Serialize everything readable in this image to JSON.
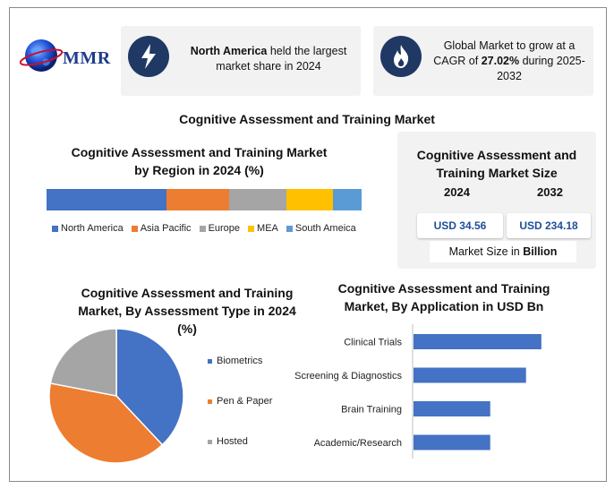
{
  "brand": {
    "logo_text": "MMR"
  },
  "cards": [
    {
      "icon": "lightning-icon",
      "pre": "",
      "bold": "North America",
      "post": " held the largest market share in 2024"
    },
    {
      "icon": "flame-icon",
      "pre": "Global Market to grow at a CAGR of ",
      "bold": "27.02%",
      "post": " during 2025-2032"
    }
  ],
  "main_title": "Cognitive Assessment and Training Market",
  "region_title": "Cognitive Assessment and Training Market by Region in 2024 (%)",
  "size_panel": {
    "title": "Cognitive Assessment and Training Market Size",
    "year_a": "2024",
    "year_b": "2032",
    "value_a": "USD 34.56",
    "value_b": "USD 234.18",
    "unit_prefix": "Market Size in ",
    "unit_bold": "Billion"
  },
  "type_title": "Cognitive Assessment and Training Market, By Assessment Type in 2024 (%)",
  "app_title": "Cognitive Assessment and Training Market, By Application in USD Bn",
  "colors": {
    "blue": "#4472c4",
    "orange": "#ed7d31",
    "gray": "#a5a5a5",
    "yellow": "#ffc000",
    "light_blue": "#5b9bd5",
    "navy": "#1f3864"
  },
  "chart_data": [
    {
      "type": "bar",
      "orientation": "stacked-horizontal",
      "title": "Cognitive Assessment and Training Market by Region in 2024 (%)",
      "series": [
        {
          "name": "North America",
          "value": 38,
          "color": "#4472c4"
        },
        {
          "name": "Asia Pacific",
          "value": 20,
          "color": "#ed7d31"
        },
        {
          "name": "Europe",
          "value": 18,
          "color": "#a5a5a5"
        },
        {
          "name": "MEA",
          "value": 15,
          "color": "#ffc000"
        },
        {
          "name": "South Ameica",
          "value": 9,
          "color": "#5b9bd5"
        }
      ],
      "legend": "bottom"
    },
    {
      "type": "pie",
      "title": "Cognitive Assessment and Training Market, By Assessment Type in 2024 (%)",
      "categories": [
        "Biometrics",
        "Pen & Paper",
        "Hosted"
      ],
      "values": [
        38,
        40,
        22
      ],
      "colors": [
        "#4472c4",
        "#ed7d31",
        "#a5a5a5"
      ],
      "legend": "right"
    },
    {
      "type": "bar",
      "orientation": "horizontal",
      "title": "Cognitive Assessment and Training Market, By Application in USD Bn",
      "categories": [
        "Clinical Trials",
        "Screening & Diagnostics",
        "Brain Training",
        "Academic/Research"
      ],
      "values": [
        12.5,
        11,
        7.5,
        7.5
      ],
      "xlim": [
        0,
        14
      ],
      "color": "#4472c4",
      "grid": false
    }
  ]
}
